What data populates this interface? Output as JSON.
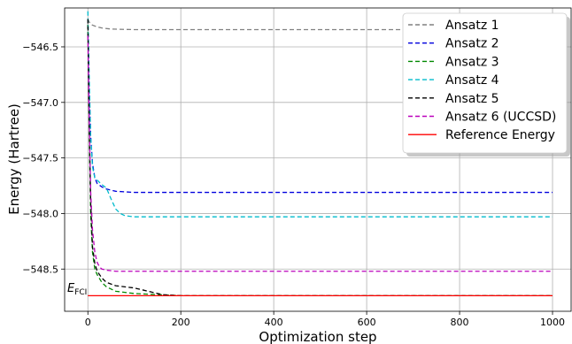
{
  "chart_data": {
    "type": "line",
    "xlabel": "Optimization step",
    "ylabel": "Energy (Hartree)",
    "xlim": [
      -50,
      1040
    ],
    "ylim": [
      -548.88,
      -546.15
    ],
    "x_ticks": [
      0,
      200,
      400,
      600,
      800,
      1000
    ],
    "x_tick_labels": [
      "0",
      "200",
      "400",
      "600",
      "800",
      "1000"
    ],
    "y_ticks": [
      -546.5,
      -547.0,
      -547.5,
      -548.0,
      -548.5
    ],
    "y_tick_labels": [
      "−546.5",
      "−547.0",
      "−547.5",
      "−548.0",
      "−548.5"
    ],
    "grid": true,
    "legend_position": "top-right",
    "annotation": {
      "label_main": "E",
      "label_sub": "FCI",
      "x": -45,
      "y": -548.67
    },
    "series": [
      {
        "name": "Ansatz 1",
        "color": "#808080",
        "dash": true,
        "x": [
          0,
          2,
          5,
          10,
          20,
          30,
          50,
          100,
          200,
          1000
        ],
        "y": [
          -546.25,
          -546.27,
          -546.29,
          -546.305,
          -546.32,
          -546.33,
          -546.34,
          -546.345,
          -546.345,
          -546.345
        ]
      },
      {
        "name": "Ansatz 2",
        "color": "#0000dd",
        "dash": true,
        "x": [
          0,
          3,
          6,
          10,
          15,
          20,
          30,
          40,
          60,
          100,
          1000
        ],
        "y": [
          -546.3,
          -546.9,
          -547.3,
          -547.55,
          -547.68,
          -547.73,
          -547.76,
          -547.78,
          -547.8,
          -547.81,
          -547.81
        ]
      },
      {
        "name": "Ansatz 3",
        "color": "#008800",
        "dash": true,
        "x": [
          0,
          3,
          6,
          10,
          15,
          20,
          30,
          40,
          60,
          100,
          200,
          1000
        ],
        "y": [
          -546.3,
          -547.3,
          -548.0,
          -548.35,
          -548.5,
          -548.55,
          -548.62,
          -548.66,
          -548.7,
          -548.72,
          -548.74,
          -548.74
        ]
      },
      {
        "name": "Ansatz 4",
        "color": "#00bbcc",
        "dash": true,
        "x": [
          0,
          3,
          6,
          10,
          15,
          20,
          30,
          40,
          50,
          60,
          70,
          80,
          100,
          1000
        ],
        "y": [
          -546.18,
          -546.8,
          -547.3,
          -547.58,
          -547.68,
          -547.7,
          -547.74,
          -547.77,
          -547.87,
          -547.96,
          -548.0,
          -548.02,
          -548.03,
          -548.03
        ]
      },
      {
        "name": "Ansatz 5",
        "color": "#000000",
        "dash": true,
        "x": [
          0,
          3,
          6,
          10,
          15,
          20,
          30,
          40,
          60,
          100,
          130,
          160,
          200,
          1000
        ],
        "y": [
          -546.25,
          -547.2,
          -547.9,
          -548.3,
          -548.45,
          -548.52,
          -548.58,
          -548.62,
          -548.65,
          -548.67,
          -548.7,
          -548.73,
          -548.74,
          -548.74
        ]
      },
      {
        "name": "Ansatz 6 (UCCSD)",
        "color": "#bb00bb",
        "dash": true,
        "x": [
          0,
          3,
          6,
          10,
          15,
          20,
          25,
          30,
          40,
          60,
          100,
          1000
        ],
        "y": [
          -546.4,
          -547.2,
          -547.8,
          -548.15,
          -548.35,
          -548.44,
          -548.48,
          -548.5,
          -548.51,
          -548.52,
          -548.52,
          -548.52
        ]
      },
      {
        "name": "Reference Energy",
        "color": "#ff0000",
        "dash": false,
        "x": [
          0,
          1000
        ],
        "y": [
          -548.74,
          -548.74
        ]
      }
    ]
  }
}
